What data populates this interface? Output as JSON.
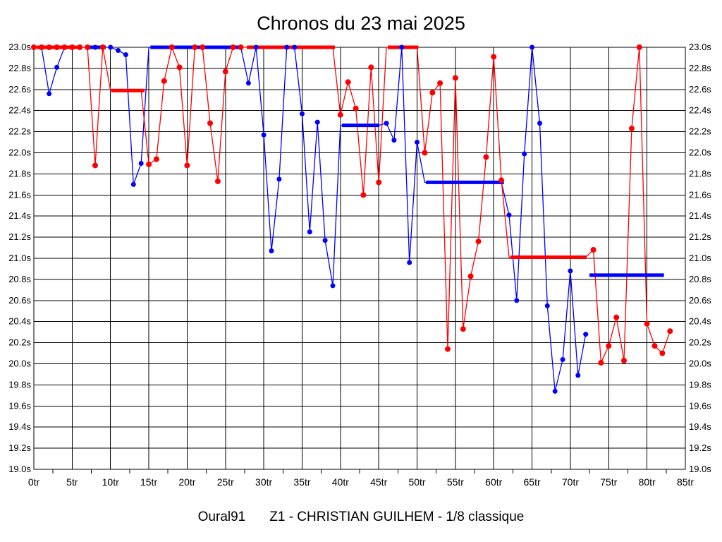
{
  "title": "Chronos du 23 mai 2025",
  "footer": {
    "club": "Oural91",
    "heat": "Z1 - CHRISTIAN GUILHEM - 1/8 classique"
  },
  "chart_data": {
    "type": "line",
    "title": "Chronos du 23 mai 2025",
    "x_unit": "tr",
    "y_unit": "s",
    "x_range": [
      0,
      85
    ],
    "y_range": [
      19.0,
      23.0
    ],
    "grid": true,
    "x_ticks": [
      "0tr",
      "5tr",
      "10tr",
      "15tr",
      "20tr",
      "25tr",
      "30tr",
      "35tr",
      "40tr",
      "45tr",
      "50tr",
      "55tr",
      "60tr",
      "65tr",
      "70tr",
      "75tr",
      "80tr",
      "85tr"
    ],
    "y_ticks": [
      "23.0s",
      "22.8s",
      "22.6s",
      "22.4s",
      "22.2s",
      "22.0s",
      "21.8s",
      "21.6s",
      "21.4s",
      "21.2s",
      "21.0s",
      "20.8s",
      "20.6s",
      "20.4s",
      "20.2s",
      "20.0s",
      "19.8s",
      "19.6s",
      "19.4s",
      "19.2s",
      "19.0s"
    ],
    "series": [
      {
        "name": "blue-driver",
        "color": "#0000ff",
        "dot_radius": 3.5,
        "dotless_ranges": [
          [
            15,
            27
          ],
          [
            40,
            45
          ],
          [
            51,
            61
          ]
        ],
        "points": [
          [
            0,
            23.0
          ],
          [
            1,
            23.0
          ],
          [
            2,
            22.56
          ],
          [
            3,
            22.81
          ],
          [
            4,
            23.0
          ],
          [
            5,
            23.0
          ],
          [
            6,
            23.0
          ],
          [
            7,
            23.0
          ],
          [
            8,
            23.0
          ],
          [
            9,
            23.0
          ],
          [
            10,
            23.0
          ],
          [
            11,
            22.97
          ],
          [
            12,
            22.93
          ],
          [
            13,
            21.7
          ],
          [
            14,
            21.9
          ],
          [
            15,
            23.0
          ],
          [
            16,
            23.0
          ],
          [
            17,
            23.0
          ],
          [
            18,
            23.0
          ],
          [
            19,
            23.0
          ],
          [
            20,
            23.0
          ],
          [
            21,
            23.0
          ],
          [
            22,
            23.0
          ],
          [
            23,
            23.0
          ],
          [
            24,
            23.0
          ],
          [
            25,
            23.0
          ],
          [
            26,
            23.0
          ],
          [
            27,
            23.0
          ],
          [
            28,
            22.66
          ],
          [
            29,
            23.0
          ],
          [
            30,
            22.17
          ],
          [
            31,
            21.07
          ],
          [
            32,
            21.75
          ],
          [
            33,
            23.0
          ],
          [
            34,
            23.0
          ],
          [
            35,
            22.37
          ],
          [
            36,
            21.25
          ],
          [
            37,
            22.29
          ],
          [
            38,
            21.17
          ],
          [
            39,
            20.74
          ],
          [
            40,
            22.26
          ],
          [
            41,
            22.26
          ],
          [
            42,
            22.26
          ],
          [
            43,
            22.26
          ],
          [
            44,
            22.26
          ],
          [
            45,
            22.26
          ],
          [
            46,
            22.28
          ],
          [
            47,
            22.12
          ],
          [
            48,
            23.0
          ],
          [
            49,
            20.96
          ],
          [
            50,
            22.1
          ],
          [
            51,
            21.72
          ],
          [
            52,
            21.72
          ],
          [
            53,
            21.72
          ],
          [
            54,
            21.72
          ],
          [
            55,
            21.72
          ],
          [
            56,
            21.72
          ],
          [
            57,
            21.72
          ],
          [
            58,
            21.72
          ],
          [
            59,
            21.72
          ],
          [
            60,
            21.72
          ],
          [
            61,
            21.72
          ],
          [
            62,
            21.41
          ],
          [
            63,
            20.6
          ],
          [
            64,
            21.99
          ],
          [
            65,
            23.0
          ],
          [
            66,
            22.28
          ],
          [
            67,
            20.55
          ],
          [
            68,
            19.74
          ],
          [
            69,
            20.04
          ],
          [
            70,
            20.88
          ],
          [
            71,
            19.89
          ],
          [
            72,
            20.28
          ]
        ]
      },
      {
        "name": "red-driver",
        "color": "#ff0000",
        "dot_radius": 4,
        "dotless_ranges": [
          [
            10,
            14
          ],
          [
            28,
            39
          ],
          [
            46,
            50
          ],
          [
            62,
            72
          ]
        ],
        "points": [
          [
            0,
            23.0
          ],
          [
            1,
            23.0
          ],
          [
            2,
            23.0
          ],
          [
            3,
            23.0
          ],
          [
            4,
            23.0
          ],
          [
            5,
            23.0
          ],
          [
            6,
            23.0
          ],
          [
            7,
            23.0
          ],
          [
            8,
            21.88
          ],
          [
            9,
            23.0
          ],
          [
            10,
            22.59
          ],
          [
            11,
            22.59
          ],
          [
            12,
            22.59
          ],
          [
            13,
            22.59
          ],
          [
            14,
            22.59
          ],
          [
            15,
            21.89
          ],
          [
            16,
            21.94
          ],
          [
            17,
            22.68
          ],
          [
            18,
            23.0
          ],
          [
            19,
            22.81
          ],
          [
            20,
            21.88
          ],
          [
            21,
            23.0
          ],
          [
            22,
            23.0
          ],
          [
            23,
            22.28
          ],
          [
            24,
            21.73
          ],
          [
            25,
            22.77
          ],
          [
            26,
            23.0
          ],
          [
            27,
            23.0
          ],
          [
            28,
            23.0
          ],
          [
            29,
            23.0
          ],
          [
            30,
            23.0
          ],
          [
            31,
            23.0
          ],
          [
            32,
            23.0
          ],
          [
            33,
            23.0
          ],
          [
            34,
            23.0
          ],
          [
            35,
            23.0
          ],
          [
            36,
            23.0
          ],
          [
            37,
            23.0
          ],
          [
            38,
            23.0
          ],
          [
            39,
            23.0
          ],
          [
            40,
            22.36
          ],
          [
            41,
            22.67
          ],
          [
            42,
            22.42
          ],
          [
            43,
            21.6
          ],
          [
            44,
            22.81
          ],
          [
            45,
            21.72
          ],
          [
            46,
            23.0
          ],
          [
            47,
            23.0
          ],
          [
            48,
            23.0
          ],
          [
            49,
            23.0
          ],
          [
            50,
            23.0
          ],
          [
            51,
            22.0
          ],
          [
            52,
            22.57
          ],
          [
            53,
            22.66
          ],
          [
            54,
            20.14
          ],
          [
            55,
            22.71
          ],
          [
            56,
            20.33
          ],
          [
            57,
            20.83
          ],
          [
            58,
            21.16
          ],
          [
            59,
            21.96
          ],
          [
            60,
            22.91
          ],
          [
            61,
            21.74
          ],
          [
            62,
            21.01
          ],
          [
            63,
            21.01
          ],
          [
            64,
            21.01
          ],
          [
            65,
            21.01
          ],
          [
            66,
            21.01
          ],
          [
            67,
            21.01
          ],
          [
            68,
            21.01
          ],
          [
            69,
            21.01
          ],
          [
            70,
            21.01
          ],
          [
            71,
            21.01
          ],
          [
            72,
            21.01
          ],
          [
            73,
            21.08
          ],
          [
            74,
            20.01
          ],
          [
            75,
            20.17
          ],
          [
            76,
            20.44
          ],
          [
            77,
            20.03
          ],
          [
            78,
            22.23
          ],
          [
            79,
            23.0
          ],
          [
            80,
            20.38
          ],
          [
            81,
            20.17
          ],
          [
            82,
            20.1
          ],
          [
            83,
            20.31
          ]
        ]
      }
    ],
    "segment_averages": [
      {
        "color": "#ff0000",
        "from": 0.37,
        "to": 5.98,
        "value": 23.0
      },
      {
        "color": "#0000ff",
        "from": 7.17,
        "to": 9.38,
        "value": 23.0
      },
      {
        "color": "#ff0000",
        "from": 10.12,
        "to": 14.44,
        "value": 22.59
      },
      {
        "color": "#0000ff",
        "from": 15.21,
        "to": 27.02,
        "value": 23.0
      },
      {
        "color": "#ff0000",
        "from": 27.78,
        "to": 39.28,
        "value": 23.0
      },
      {
        "color": "#0000ff",
        "from": 40.2,
        "to": 45.08,
        "value": 22.26
      },
      {
        "color": "#ff0000",
        "from": 46.18,
        "to": 50.17,
        "value": 23.0
      },
      {
        "color": "#0000ff",
        "from": 51.15,
        "to": 61.33,
        "value": 21.72
      },
      {
        "color": "#ff0000",
        "from": 62.19,
        "to": 72.12,
        "value": 21.01
      },
      {
        "color": "#0000ff",
        "from": 72.49,
        "to": 82.21,
        "value": 20.84
      }
    ]
  }
}
